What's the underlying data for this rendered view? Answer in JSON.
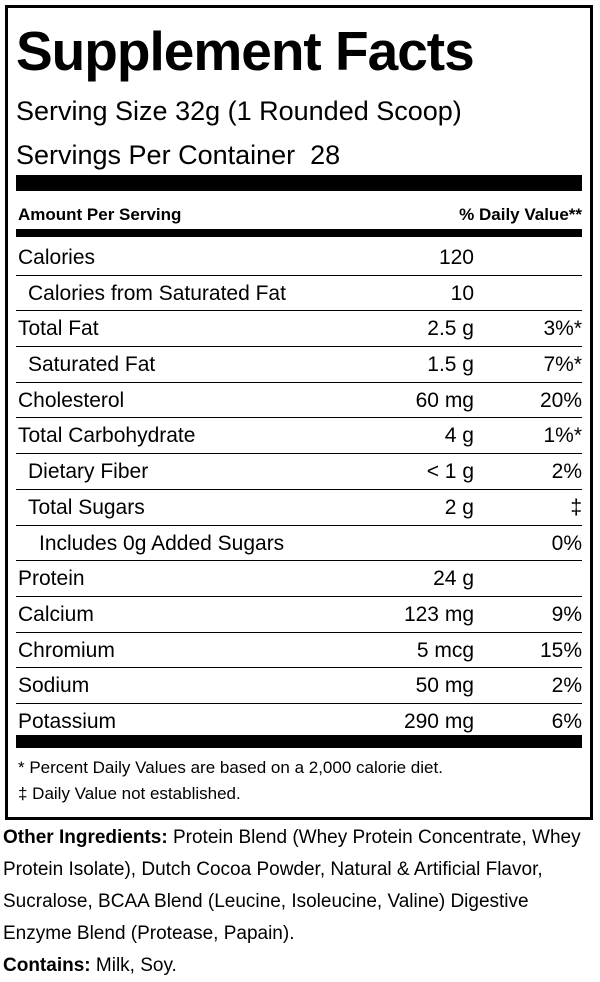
{
  "label": {
    "title": "Supplement Facts",
    "serving_size": "Serving Size 32g (1 Rounded Scoop)",
    "servings_per_container": {
      "label": "Servings Per Container",
      "value": "28"
    },
    "header": {
      "amount": "Amount Per Serving",
      "daily_value": "% Daily Value**"
    },
    "rows": [
      [
        "Calories",
        "120"
      ],
      [
        "Calories from Saturated Fat",
        "10"
      ],
      [
        "Total Fat",
        "2.5 g",
        "3%*"
      ],
      [
        "Saturated Fat",
        "1.5 g",
        "7%*"
      ],
      [
        "Cholesterol",
        "60 mg",
        "20%"
      ],
      [
        "Total Carbohydrate",
        "4 g",
        "1%*"
      ],
      [
        "Dietary Fiber",
        "< 1 g",
        "2%"
      ],
      [
        "Total Sugars",
        "2 g",
        "‡"
      ],
      [
        "Includes 0g Added Sugars",
        "0%"
      ],
      [
        "Protein",
        "24 g"
      ],
      [
        "Calcium",
        "123 mg",
        "9%"
      ],
      [
        "Chromium",
        "5 mcg",
        "15%"
      ],
      [
        "Sodium",
        "50 mg",
        "2%"
      ],
      [
        "Potassium",
        "290 mg",
        "6%"
      ]
    ],
    "footnotes": [
      "* Percent Daily Values are based on a 2,000 calorie diet.",
      "‡ Daily Value not established."
    ]
  },
  "other_ingredients": {
    "label": "Other Ingredients:",
    "text": "Protein Blend (Whey Protein Concentrate, Whey Protein Isolate), Dutch Cocoa Powder, Natural & Artificial Flavor, Sucralose, BCAA Blend (Leucine, Isoleucine, Valine) Digestive Enzyme Blend (Protease, Papain)."
  },
  "contains": {
    "label": "Contains:",
    "text": "Milk, Soy."
  }
}
